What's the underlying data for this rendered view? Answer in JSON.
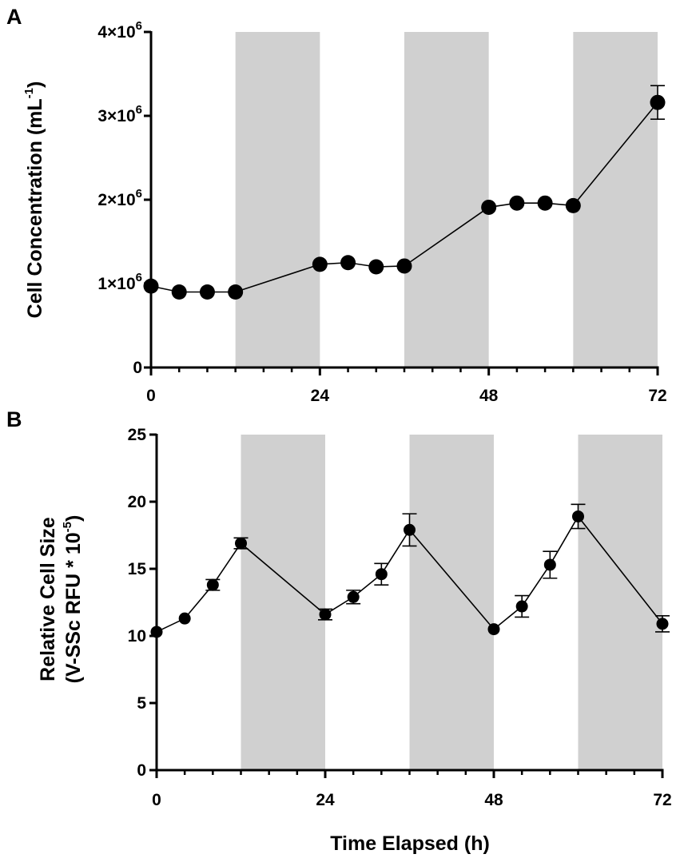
{
  "chart_data": [
    {
      "type": "line",
      "panel_label": "A",
      "title": "",
      "xlabel": "",
      "ylabel_main": "Cell Concentration (mL",
      "ylabel_sup": "-1",
      "ylabel_close": ")",
      "xlim": [
        0,
        72
      ],
      "ylim": [
        0,
        4000000
      ],
      "x_ticks": [
        0,
        24,
        48,
        72
      ],
      "x_tick_labels": [
        "0",
        "24",
        "48",
        "72"
      ],
      "y_ticks": [
        0,
        1000000,
        2000000,
        3000000,
        4000000
      ],
      "y_tick_labels": [
        {
          "base": "0",
          "exp": ""
        },
        {
          "base": "1×10",
          "exp": "6"
        },
        {
          "base": "2×10",
          "exp": "6"
        },
        {
          "base": "3×10",
          "exp": "6"
        },
        {
          "base": "4×10",
          "exp": "6"
        }
      ],
      "dark_periods": [
        [
          12,
          24
        ],
        [
          36,
          48
        ],
        [
          60,
          72
        ]
      ],
      "series": [
        {
          "name": "Cell Concentration",
          "x": [
            0,
            4,
            8,
            12,
            24,
            28,
            32,
            36,
            48,
            52,
            56,
            60,
            72
          ],
          "y": [
            970000,
            900000,
            900000,
            900000,
            1230000,
            1250000,
            1200000,
            1210000,
            1910000,
            1960000,
            1960000,
            1930000,
            3160000
          ],
          "err": [
            0,
            0,
            0,
            0,
            0,
            0,
            0,
            0,
            0,
            0,
            0,
            0,
            200000
          ]
        }
      ]
    },
    {
      "type": "line",
      "panel_label": "B",
      "title": "",
      "xlabel": "Time Elapsed (h)",
      "ylabel_line1": "Relative Cell Size",
      "ylabel_line2_main": "(V-SSc RFU * 10",
      "ylabel_line2_sup": "-5",
      "ylabel_line2_close": ")",
      "xlim": [
        0,
        72
      ],
      "ylim": [
        0,
        25
      ],
      "x_ticks": [
        0,
        24,
        48,
        72
      ],
      "x_tick_labels": [
        "0",
        "24",
        "48",
        "72"
      ],
      "y_ticks": [
        0,
        5,
        10,
        15,
        20,
        25
      ],
      "y_tick_labels": [
        {
          "base": "0",
          "exp": ""
        },
        {
          "base": "5",
          "exp": ""
        },
        {
          "base": "10",
          "exp": ""
        },
        {
          "base": "15",
          "exp": ""
        },
        {
          "base": "20",
          "exp": ""
        },
        {
          "base": "25",
          "exp": ""
        }
      ],
      "dark_periods": [
        [
          12,
          24
        ],
        [
          36,
          48
        ],
        [
          60,
          72
        ]
      ],
      "series": [
        {
          "name": "Relative Cell Size",
          "x": [
            0,
            4,
            8,
            12,
            24,
            28,
            32,
            36,
            48,
            52,
            56,
            60,
            72
          ],
          "y": [
            10.3,
            11.3,
            13.8,
            16.9,
            11.6,
            12.9,
            14.6,
            17.9,
            10.5,
            12.2,
            15.3,
            18.9,
            10.9
          ],
          "err": [
            0,
            0,
            0.4,
            0.4,
            0.4,
            0.5,
            0.8,
            1.2,
            0,
            0.8,
            1.0,
            0.9,
            0.6
          ]
        }
      ]
    }
  ]
}
